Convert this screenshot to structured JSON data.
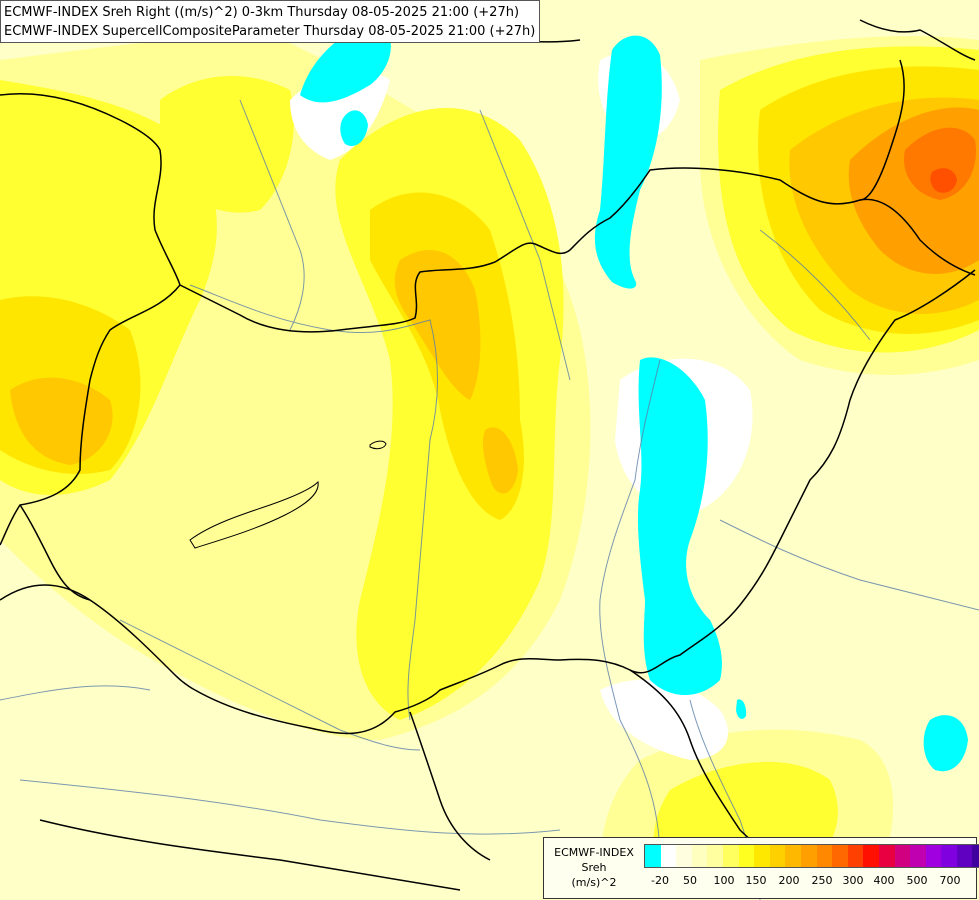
{
  "title": {
    "line1": "ECMWF-INDEX Sreh Right ((m/s)^2) 0-3km Thursday 08-05-2025 21:00 (+27h)",
    "line2": "ECMWF-INDEX SupercellCompositeParameter Thursday 08-05-2025 21:00 (+27h)"
  },
  "legend": {
    "line1": "ECMWF-INDEX",
    "line2": "Sreh",
    "line3": "(m/s)^2",
    "ticks": [
      "-20",
      "50",
      "100",
      "150",
      "200",
      "250",
      "300",
      "400",
      "500",
      "700"
    ],
    "colors": [
      "#00ffff",
      "#ffffff",
      "#ffffe0",
      "#ffffc0",
      "#ffffa0",
      "#ffff60",
      "#ffff20",
      "#ffe800",
      "#ffd000",
      "#ffb800",
      "#ffa000",
      "#ff8800",
      "#ff6800",
      "#ff4000",
      "#ff1000",
      "#e80040",
      "#d00080",
      "#c000b0",
      "#a000e0",
      "#8000e0",
      "#6000c0",
      "#4000a0",
      "#000080"
    ]
  },
  "palette": {
    "cyan": "#00ffff",
    "pale": "#ffffc8",
    "light_yellow": "#ffff96",
    "yellow": "#ffff32",
    "gold": "#ffe600",
    "amber": "#ffc800",
    "orange": "#ffa000",
    "deep_orange": "#ff7800",
    "red_orange": "#ff5000"
  }
}
